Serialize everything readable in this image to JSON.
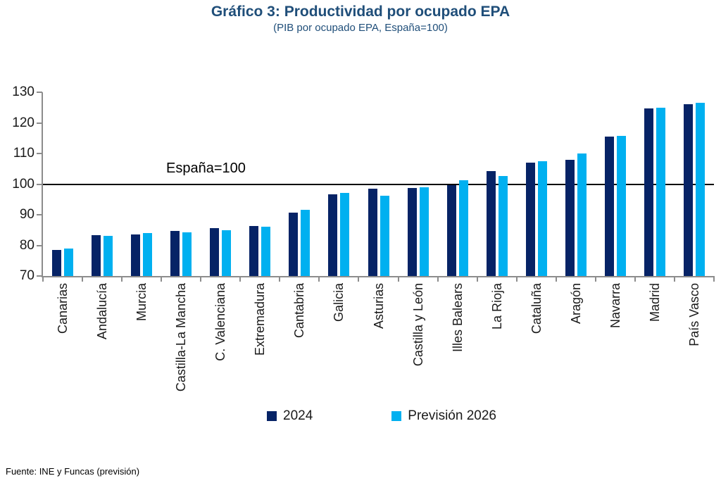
{
  "chart_data": {
    "type": "bar",
    "title": "Gráfico 3: Productividad por ocupado EPA",
    "subtitle": "(PIB por ocupado EPA, España=100)",
    "categories": [
      "Canarias",
      "Andalucía",
      "Murcia",
      "Castilla-La Mancha",
      "C. Valenciana",
      "Extremadura",
      "Cantabria",
      "Galicia",
      "Asturias",
      "Castilla y León",
      "Illes Balears",
      "La Rioja",
      "Cataluña",
      "Aragón",
      "Navarra",
      "Madrid",
      "País Vasco"
    ],
    "series": [
      {
        "name": "2024",
        "color": "#062366",
        "values": [
          78.6,
          83.3,
          83.6,
          84.7,
          85.7,
          86.3,
          90.8,
          96.7,
          98.4,
          98.8,
          99.7,
          104.3,
          107.0,
          107.9,
          115.6,
          124.8,
          126.0
        ]
      },
      {
        "name": "Previsión 2026",
        "color": "#00B0F0",
        "values": [
          79.0,
          83.2,
          84.0,
          84.2,
          85.0,
          86.0,
          91.7,
          97.2,
          96.2,
          99.0,
          101.3,
          102.7,
          107.5,
          109.9,
          115.8,
          124.9,
          126.5
        ]
      }
    ],
    "ylim": [
      70,
      130
    ],
    "yticks": [
      70,
      80,
      90,
      100,
      110,
      120,
      130
    ],
    "reference_line": {
      "value": 100,
      "label": "España=100",
      "color": "#000000"
    },
    "grid": false,
    "legend_position": "bottom",
    "axis_color": "#8c8c8c"
  },
  "footer": {
    "source": "Fuente: INE y Funcas (previsión)"
  }
}
